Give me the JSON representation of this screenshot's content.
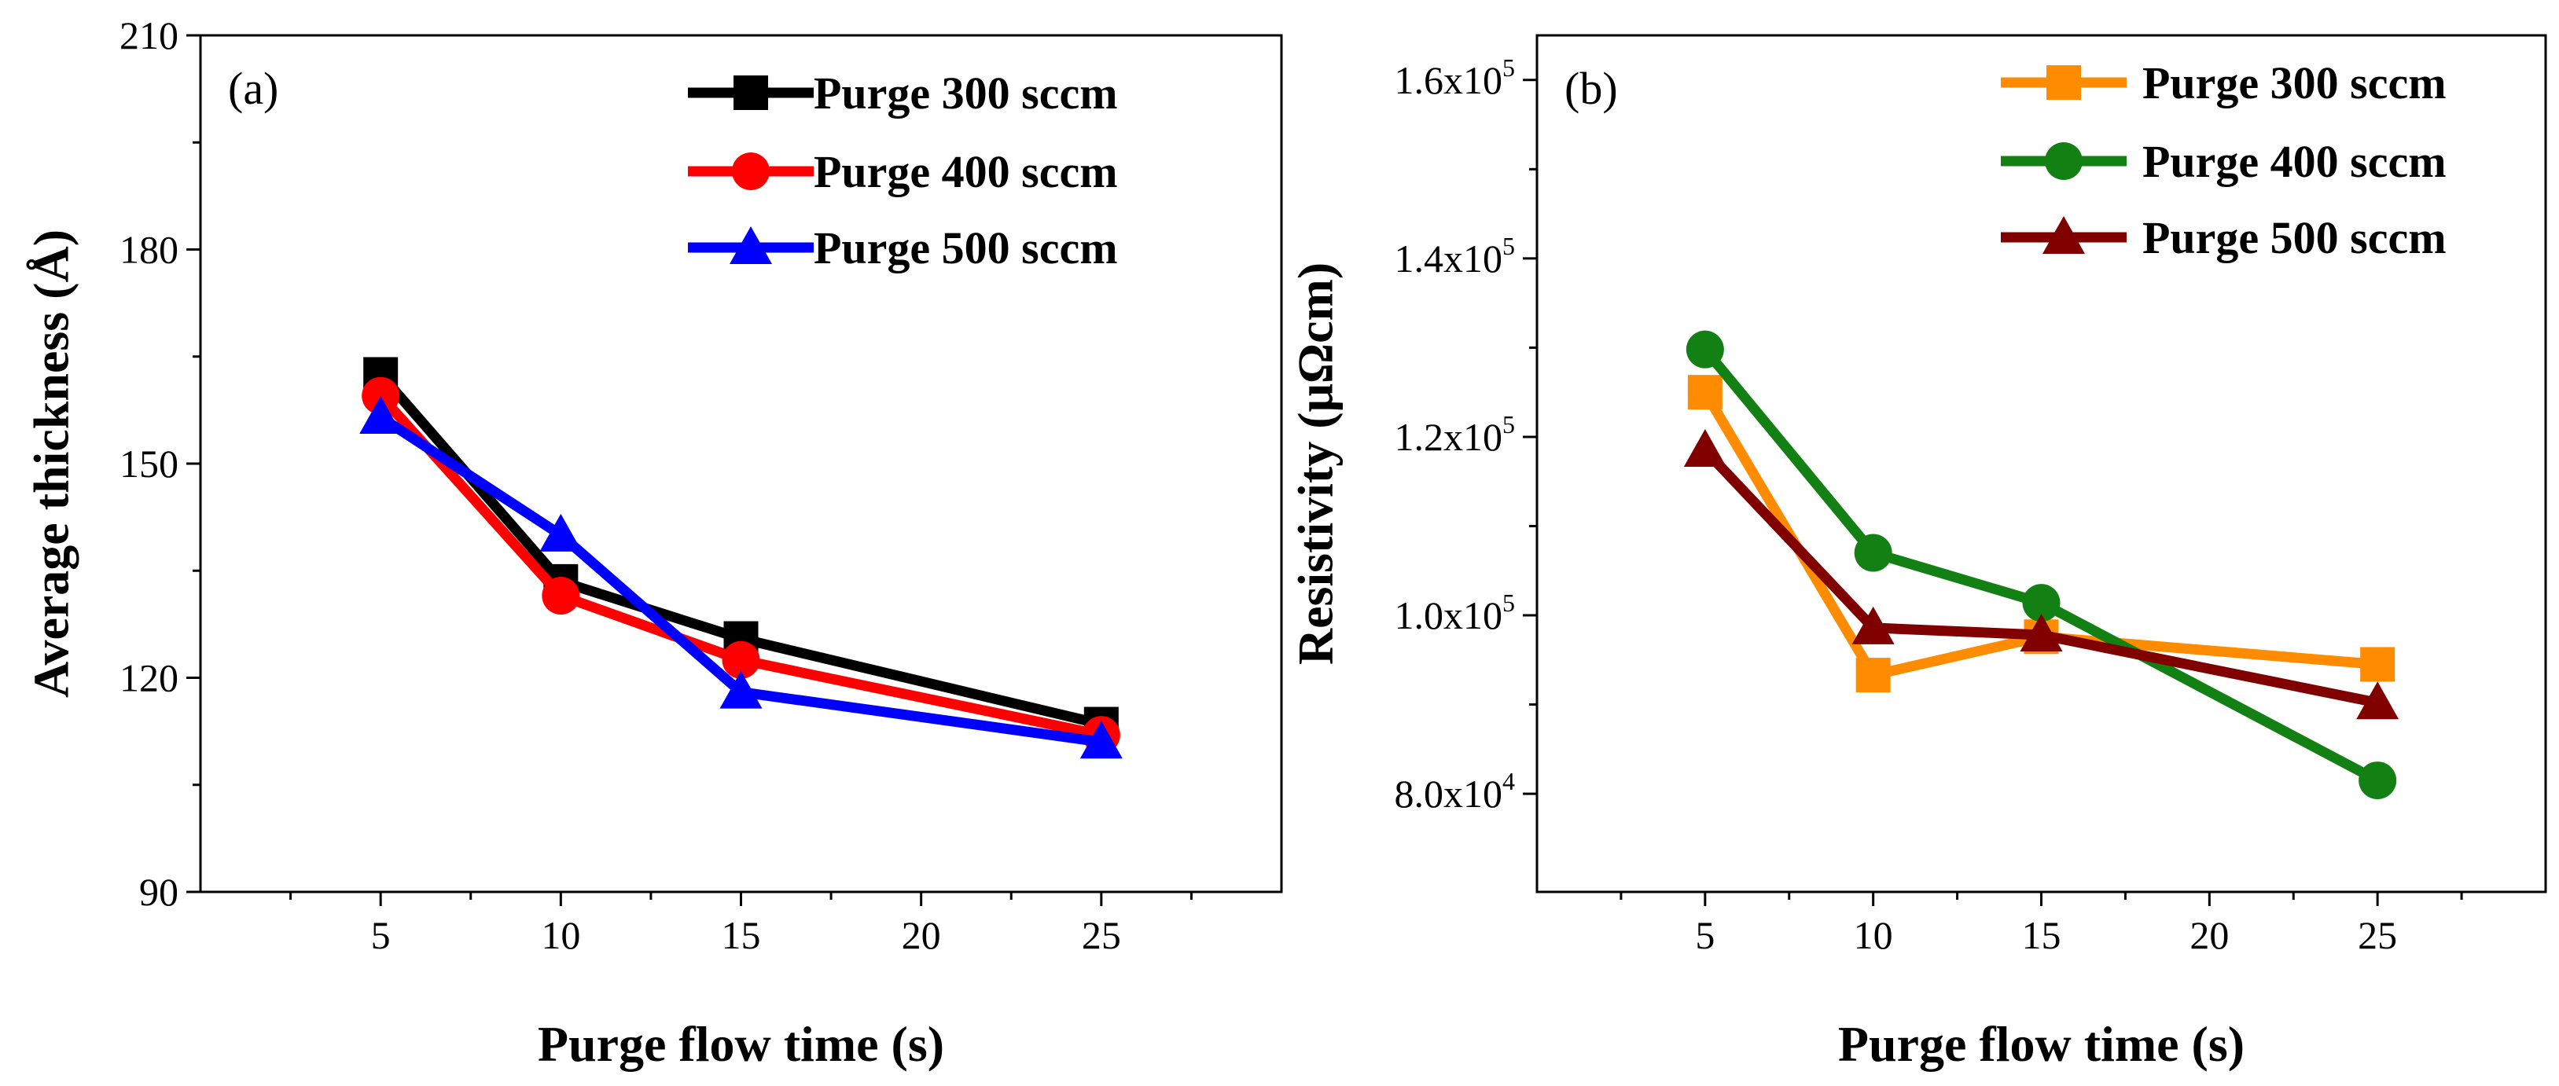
{
  "chart_data": [
    {
      "type": "line",
      "panel_label": "(a)",
      "xlabel": "Purge flow time (s)",
      "ylabel": "Average thickness (Å)",
      "xlim": [
        0,
        30
      ],
      "ylim": [
        90,
        210
      ],
      "xticks": [
        5,
        10,
        15,
        20,
        25
      ],
      "yticks": [
        90,
        120,
        150,
        180,
        210
      ],
      "x": [
        5,
        10,
        15,
        25
      ],
      "legend_position": "top-right",
      "series": [
        {
          "name": "Purge 300 sccm",
          "color": "#000000",
          "marker": "square",
          "values": [
            162.5,
            133.5,
            125.5,
            113.5
          ]
        },
        {
          "name": "Purge 400 sccm",
          "color": "#ff0000",
          "marker": "circle",
          "values": [
            159.5,
            131.5,
            122.5,
            112.0
          ]
        },
        {
          "name": "Purge 500 sccm",
          "color": "#0000ff",
          "marker": "triangle",
          "values": [
            156.5,
            140.0,
            118.0,
            111.0
          ]
        }
      ]
    },
    {
      "type": "line",
      "panel_label": "(b)",
      "xlabel": "Purge flow time (s)",
      "ylabel": "Resistivity (μΩcm)",
      "xlim": [
        0,
        30
      ],
      "ylim": [
        69000,
        165000
      ],
      "xticks": [
        5,
        10,
        15,
        20,
        25
      ],
      "yticks": [
        80000,
        100000,
        120000,
        140000,
        160000
      ],
      "ytick_labels": [
        {
          "mant": "8.0x10",
          "exp": "4"
        },
        {
          "mant": "1.0x10",
          "exp": "5"
        },
        {
          "mant": "1.2x10",
          "exp": "5"
        },
        {
          "mant": "1.4x10",
          "exp": "5"
        },
        {
          "mant": "1.6x10",
          "exp": "5"
        }
      ],
      "x": [
        5,
        10,
        15,
        25
      ],
      "legend_position": "top-right",
      "series": [
        {
          "name": "Purge 300 sccm",
          "color": "#ff8c00",
          "marker": "square",
          "values": [
            125000,
            93300,
            97600,
            94500
          ]
        },
        {
          "name": "Purge 400 sccm",
          "color": "#138013",
          "marker": "circle",
          "values": [
            129800,
            107000,
            101400,
            81500
          ]
        },
        {
          "name": "Purge 500 sccm",
          "color": "#800000",
          "marker": "triangle",
          "values": [
            118500,
            98600,
            97800,
            90200
          ]
        }
      ]
    }
  ]
}
